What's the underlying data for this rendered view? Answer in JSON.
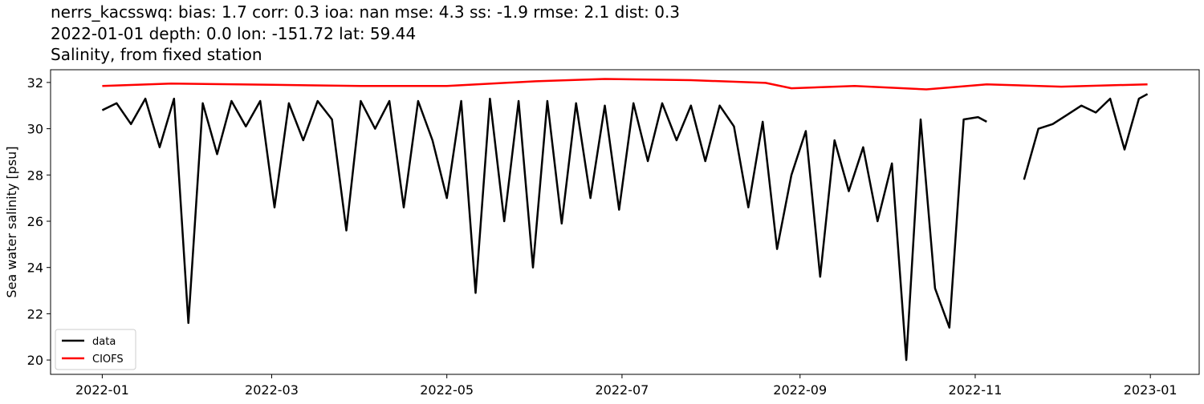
{
  "chart_data": {
    "type": "line",
    "title_lines": [
      "nerrs_kacsswq: bias: 1.7  corr: 0.3  ioa: nan  mse: 4.3  ss: -1.9  rmse: 2.1  dist: 0.3",
      "2022-01-01 depth: 0.0 lon: -151.72 lat: 59.44",
      "Salinity, from fixed station"
    ],
    "ylabel": "Sea water salinity [psu]",
    "xlim": [
      "2021-12-14",
      "2023-01-18"
    ],
    "xticks": [
      {
        "value": "2022-01-01",
        "label": "2022-01"
      },
      {
        "value": "2022-03-01",
        "label": "2022-03"
      },
      {
        "value": "2022-05-01",
        "label": "2022-05"
      },
      {
        "value": "2022-07-01",
        "label": "2022-07"
      },
      {
        "value": "2022-09-01",
        "label": "2022-09"
      },
      {
        "value": "2022-11-01",
        "label": "2022-11"
      },
      {
        "value": "2023-01-01",
        "label": "2023-01"
      }
    ],
    "ylim": [
      19.38,
      32.55
    ],
    "yticks": [
      20,
      22,
      24,
      26,
      28,
      30,
      32
    ],
    "legend": "lower left",
    "series": [
      {
        "name": "data",
        "color": "#000000",
        "x": [
          "2022-01-01",
          "2022-01-06",
          "2022-01-11",
          "2022-01-16",
          "2022-01-21",
          "2022-01-26",
          "2022-01-31",
          "2022-02-05",
          "2022-02-10",
          "2022-02-15",
          "2022-02-20",
          "2022-02-25",
          "2022-03-02",
          "2022-03-07",
          "2022-03-12",
          "2022-03-17",
          "2022-03-22",
          "2022-03-27",
          "2022-04-01",
          "2022-04-06",
          "2022-04-11",
          "2022-04-16",
          "2022-04-21",
          "2022-04-26",
          "2022-05-01",
          "2022-05-06",
          "2022-05-11",
          "2022-05-16",
          "2022-05-21",
          "2022-05-26",
          "2022-05-31",
          "2022-06-05",
          "2022-06-10",
          "2022-06-15",
          "2022-06-20",
          "2022-06-25",
          "2022-06-30",
          "2022-07-05",
          "2022-07-10",
          "2022-07-15",
          "2022-07-20",
          "2022-07-25",
          "2022-07-30",
          "2022-08-04",
          "2022-08-09",
          "2022-08-14",
          "2022-08-19",
          "2022-08-24",
          "2022-08-29",
          "2022-09-03",
          "2022-09-08",
          "2022-09-13",
          "2022-09-18",
          "2022-09-23",
          "2022-09-28",
          "2022-10-03",
          "2022-10-08",
          "2022-10-13",
          "2022-10-18",
          "2022-10-23",
          "2022-10-28",
          "2022-11-02",
          "2022-11-05",
          "2022-11-11",
          "2022-11-18",
          "2022-11-23",
          "2022-11-28",
          "2022-12-03",
          "2022-12-08",
          "2022-12-13",
          "2022-12-18",
          "2022-12-23",
          "2022-12-28",
          "2022-12-31"
        ],
        "values": [
          30.8,
          31.1,
          30.2,
          31.3,
          29.2,
          31.3,
          21.6,
          31.1,
          28.9,
          31.2,
          30.1,
          31.2,
          26.6,
          31.1,
          29.5,
          31.2,
          30.4,
          25.6,
          31.2,
          30.0,
          31.2,
          26.6,
          31.2,
          29.5,
          27.0,
          31.2,
          22.9,
          31.3,
          26.0,
          31.2,
          24.0,
          31.2,
          25.9,
          31.1,
          27.0,
          31.0,
          26.5,
          31.1,
          28.6,
          31.1,
          29.5,
          31.0,
          28.6,
          31.0,
          30.1,
          26.6,
          30.3,
          24.8,
          28.0,
          29.9,
          23.6,
          29.5,
          27.3,
          29.2,
          26.0,
          28.5,
          20.0,
          30.4,
          23.1,
          21.4,
          30.4,
          30.5,
          30.3,
          null,
          27.8,
          30.0,
          30.2,
          30.6,
          31.0,
          30.7,
          31.3,
          29.1,
          31.3,
          31.5
        ]
      },
      {
        "name": "CIOFS",
        "color": "#ff0000",
        "x": [
          "2022-01-01",
          "2022-01-25",
          "2022-03-01",
          "2022-04-01",
          "2022-05-01",
          "2022-06-01",
          "2022-06-25",
          "2022-07-25",
          "2022-08-20",
          "2022-08-29",
          "2022-09-20",
          "2022-10-15",
          "2022-11-05",
          "2022-12-01",
          "2022-12-31"
        ],
        "values": [
          31.85,
          31.95,
          31.9,
          31.85,
          31.85,
          32.05,
          32.15,
          32.1,
          31.98,
          31.75,
          31.85,
          31.7,
          31.92,
          31.82,
          31.92
        ]
      }
    ]
  }
}
